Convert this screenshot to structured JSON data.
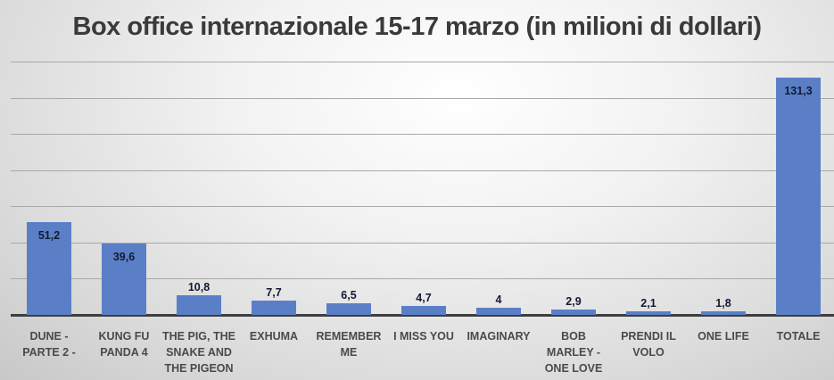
{
  "chart_data": {
    "type": "bar",
    "title": "Box office internazionale 15-17 marzo (in milioni di dollari)",
    "xlabel": "",
    "ylabel": "",
    "ylim": [
      0,
      140
    ],
    "grid": true,
    "gridlines": [
      20,
      40,
      60,
      80,
      100,
      120,
      140
    ],
    "legend": null,
    "categories": [
      "DUNE - PARTE 2 -",
      "KUNG FU PANDA 4",
      "THE PIG, THE SNAKE AND THE PIGEON",
      "EXHUMA",
      "REMEMBER ME",
      "I MISS YOU",
      "IMAGINARY",
      "BOB MARLEY - ONE LOVE",
      "PRENDI IL VOLO",
      "ONE LIFE",
      "TOTALE"
    ],
    "values": [
      51.2,
      39.6,
      10.8,
      7.7,
      6.5,
      4.7,
      4,
      2.9,
      2.1,
      1.8,
      131.3
    ],
    "value_labels": [
      "51,2",
      "39,6",
      "10,8",
      "7,7",
      "6,5",
      "4,7",
      "4",
      "2,9",
      "2,1",
      "1,8",
      "131,3"
    ],
    "bar_color": "#5a7fc7"
  }
}
